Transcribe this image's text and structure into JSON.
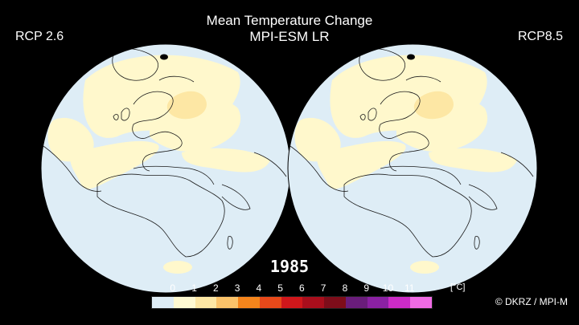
{
  "header": {
    "title": "Mean Temperature Change",
    "subtitle": "MPI-ESM LR"
  },
  "panels": {
    "left": "RCP 2.6",
    "right": "RCP8.5"
  },
  "year": "1985",
  "legend": {
    "ticks": [
      "0",
      "1",
      "2",
      "3",
      "4",
      "5",
      "6",
      "7",
      "8",
      "9",
      "10",
      "11"
    ],
    "units": "[°C]",
    "colors": [
      "#deedf6",
      "#fffad2",
      "#fde7a4",
      "#fbc36a",
      "#f5851c",
      "#e8491a",
      "#d0171b",
      "#a90e1c",
      "#7e0d1a",
      "#6a1d7b",
      "#8b21a3",
      "#cc2bc7",
      "#f06be5"
    ]
  },
  "credit": "© DKRZ / MPI-M",
  "colors": {
    "background": "#000000",
    "ocean_anomaly": "#deedf6",
    "warm_light": "#fff8cc",
    "warm_medium": "#fde7a4",
    "coast": "#1a1a1a"
  }
}
